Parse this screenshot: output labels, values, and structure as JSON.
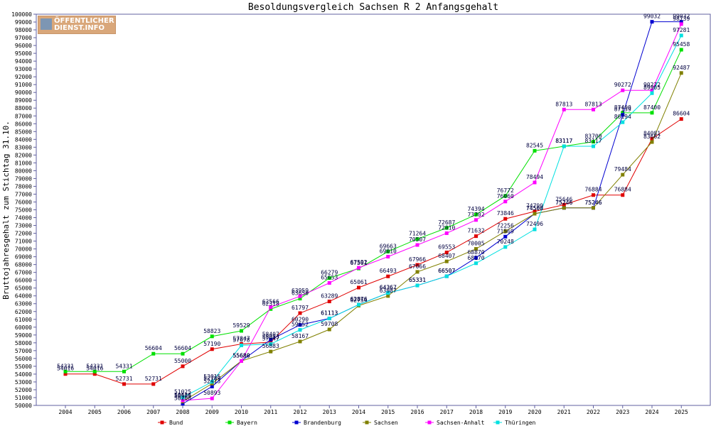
{
  "logo": {
    "line1": "ÖFFENTLICHER",
    "line2": "DIENST.INFO"
  },
  "chart_data": {
    "type": "line",
    "title": "Besoldungsvergleich Sachsen R 2 Anfangsgehalt",
    "xlabel": "",
    "ylabel": "Bruttojahresgehalt zum Stichtag 31.10.",
    "ylim": [
      50000,
      100000
    ],
    "ytick_step": 1000,
    "grid": false,
    "legend_position": "bottom",
    "x": [
      2004,
      2005,
      2006,
      2007,
      2008,
      2009,
      2010,
      2011,
      2012,
      2013,
      2014,
      2015,
      2016,
      2017,
      2018,
      2019,
      2020,
      2021,
      2022,
      2023,
      2024,
      2025
    ],
    "series": [
      {
        "name": "Bund",
        "color": "#e00000",
        "values": [
          54016,
          54016,
          52731,
          52731,
          55000,
          57190,
          57847,
          58083,
          61797,
          63289,
          65061,
          66493,
          67966,
          69553,
          71632,
          73846,
          74799,
          75646,
          76884,
          76884,
          84081,
          86604
        ]
      },
      {
        "name": "Bayern",
        "color": "#00e000",
        "values": [
          54331,
          54331,
          54331,
          56604,
          56604,
          58823,
          59529,
          62318,
          63650,
          66279,
          67501,
          69663,
          71264,
          72687,
          74394,
          76772,
          82545,
          83117,
          83700,
          87400,
          87400,
          95458
        ]
      },
      {
        "name": "Brandenburg",
        "color": "#0000d0",
        "values": [
          null,
          null,
          null,
          null,
          50208,
          52413,
          55680,
          58407,
          60290,
          61113,
          62876,
          64367,
          65331,
          66507,
          68870,
          71569,
          74500,
          75246,
          75246,
          87139,
          99032,
          99032
        ]
      },
      {
        "name": "Sachsen",
        "color": "#808000",
        "values": [
          null,
          null,
          null,
          null,
          50505,
          52789,
          55680,
          56883,
          58167,
          59708,
          62754,
          63987,
          67066,
          68407,
          70005,
          72256,
          74500,
          75246,
          75246,
          79484,
          83662,
          92487
        ]
      },
      {
        "name": "Sachsen-Anhalt",
        "color": "#ff00ff",
        "values": [
          null,
          null,
          null,
          null,
          50636,
          50893,
          55680,
          62566,
          63959,
          65653,
          67592,
          69010,
          70507,
          72010,
          73702,
          76060,
          78494,
          87813,
          87813,
          90272,
          90272,
          98739
        ]
      },
      {
        "name": "Thüringen",
        "color": "#00e0e0",
        "values": [
          null,
          null,
          null,
          null,
          51025,
          53015,
          57678,
          57847,
          59652,
          61113,
          62876,
          64367,
          65331,
          66507,
          68170,
          70248,
          72496,
          83117,
          83117,
          86194,
          89905,
          97281
        ]
      }
    ]
  }
}
